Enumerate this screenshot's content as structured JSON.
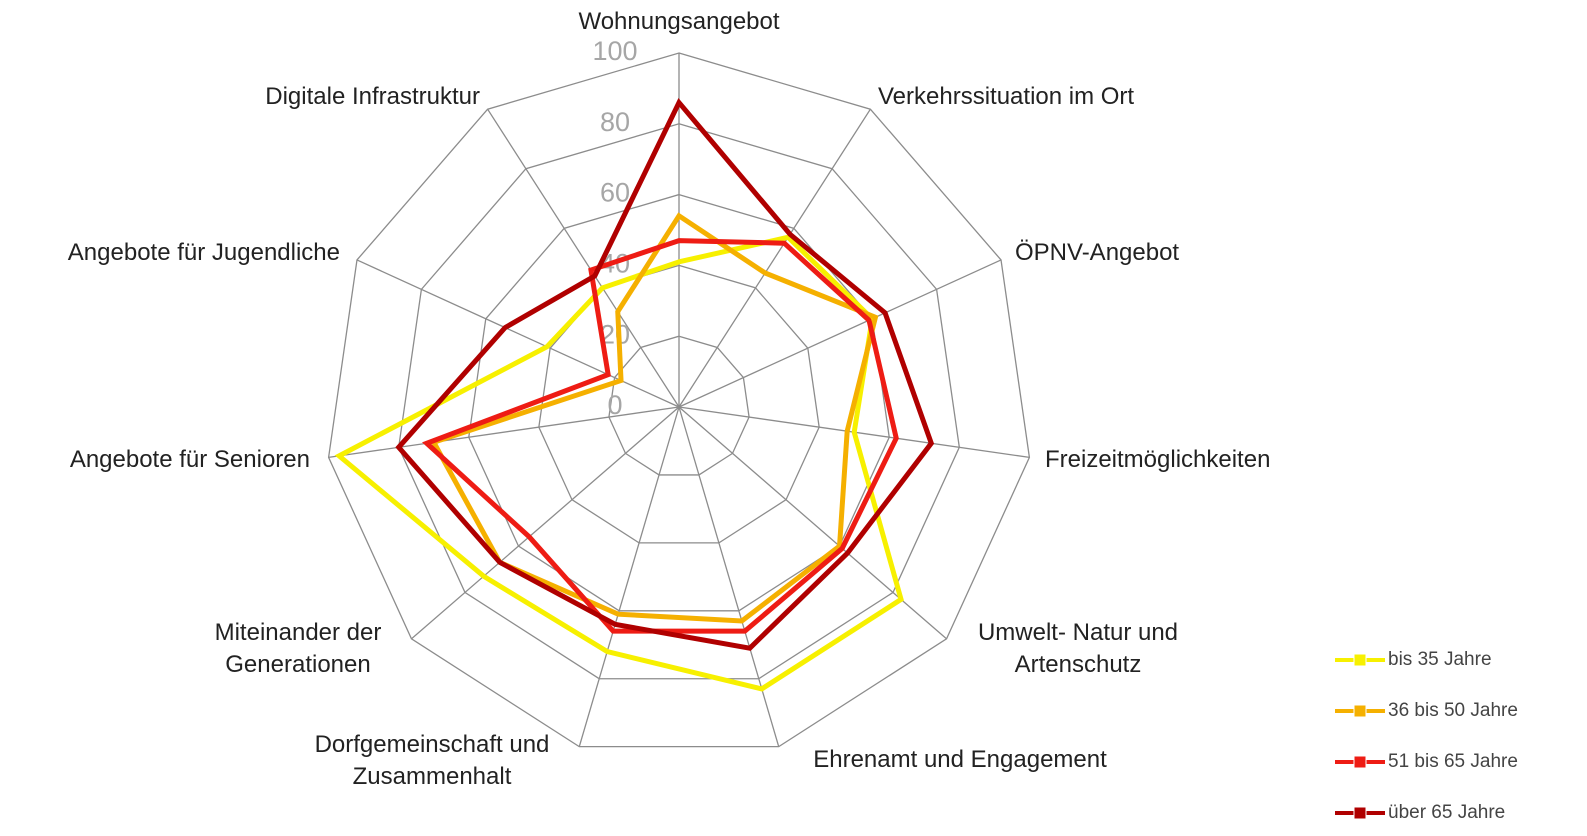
{
  "chart_data": {
    "type": "radar",
    "categories": [
      "Wohnungsangebot",
      "Verkehrssituation im Ort",
      "ÖPNV-Angebot",
      "Freizeitmöglichkeiten",
      "Umwelt- Natur und Artenschutz",
      "Ehrenamt und Engagement",
      "Dorfgemeinschaft und Zusammenhalt",
      "Miteinander der Generationen",
      "Angebote für Senioren",
      "Angebote für Jugendliche",
      "Digitale Infrastruktur"
    ],
    "series": [
      {
        "name": "bis 35 Jahre",
        "color": "#f7f000",
        "values": [
          41,
          57,
          60,
          50,
          83,
          83,
          72,
          73,
          97,
          41,
          40
        ]
      },
      {
        "name": "36 bis 50 Jahre",
        "color": "#f5b000",
        "values": [
          54,
          45,
          61,
          48,
          60,
          63,
          61,
          67,
          70,
          18,
          32
        ]
      },
      {
        "name": "51 bis 65 Jahre",
        "color": "#ee1c14",
        "values": [
          47,
          55,
          59,
          62,
          61,
          66,
          66,
          56,
          72,
          22,
          46
        ]
      },
      {
        "name": "über 65 Jahre",
        "color": "#b00000",
        "values": [
          86,
          58,
          64,
          72,
          63,
          71,
          64,
          67,
          80,
          54,
          44
        ]
      }
    ],
    "ylim": [
      0,
      100
    ],
    "yticks": [
      0,
      20,
      40,
      60,
      80,
      100
    ],
    "grid": true,
    "legend": "lower right"
  }
}
